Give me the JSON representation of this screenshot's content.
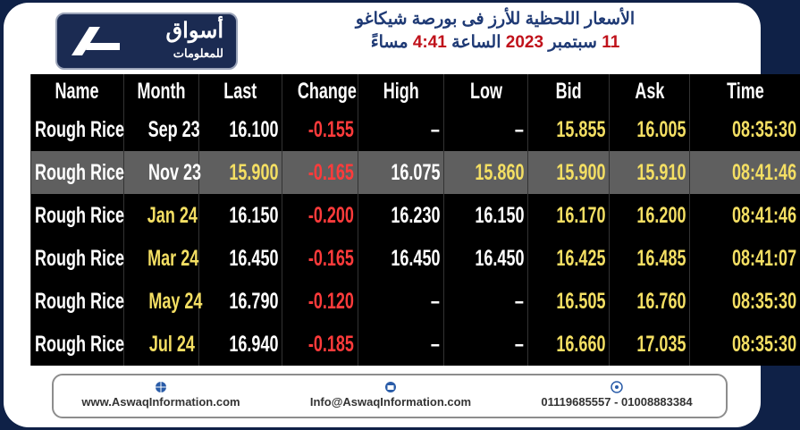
{
  "header": {
    "logo": {
      "name": "أسواق",
      "tagline": "للمعلومات"
    },
    "title_line1": "الأسعار اللحظية للأرز فى بورصة شيكاغو",
    "title_line2": [
      {
        "text": "11",
        "accent": true
      },
      {
        "text": "سبتمبر",
        "accent": false
      },
      {
        "text": "2023",
        "accent": true
      },
      {
        "text": "الساعة",
        "accent": false
      },
      {
        "text": "4:41",
        "accent": true
      },
      {
        "text": "مساءً",
        "accent": false
      }
    ]
  },
  "table": {
    "columns": [
      "Name",
      "Month",
      "Last",
      "Change",
      "High",
      "Low",
      "Bid",
      "Ask",
      "Time"
    ],
    "rows": [
      [
        "Rough Rice",
        "Sep 23",
        "16.100",
        "-0.155",
        "–",
        "–",
        "15.855",
        "16.005",
        "08:35:30"
      ],
      [
        "Rough Rice",
        "Nov 23",
        "15.900",
        "-0.165",
        "16.075",
        "15.860",
        "15.900",
        "15.910",
        "08:41:46"
      ],
      [
        "Rough Rice",
        "Jan 24",
        "16.150",
        "-0.200",
        "16.230",
        "16.150",
        "16.170",
        "16.200",
        "08:41:46"
      ],
      [
        "Rough Rice",
        "Mar 24",
        "16.450",
        "-0.165",
        "16.450",
        "16.450",
        "16.425",
        "16.485",
        "08:41:07"
      ],
      [
        "Rough Rice",
        "May 24",
        "16.790",
        "-0.120",
        "–",
        "–",
        "16.505",
        "16.760",
        "08:35:30"
      ],
      [
        "Rough Rice",
        "Jul 24",
        "16.940",
        "-0.185",
        "–",
        "–",
        "16.660",
        "17.035",
        "08:35:30"
      ]
    ]
  },
  "footer": {
    "website": "www.AswaqInformation.com",
    "email": "Info@AswaqInformation.com",
    "phone": "01119685557 - 01008883384"
  }
}
